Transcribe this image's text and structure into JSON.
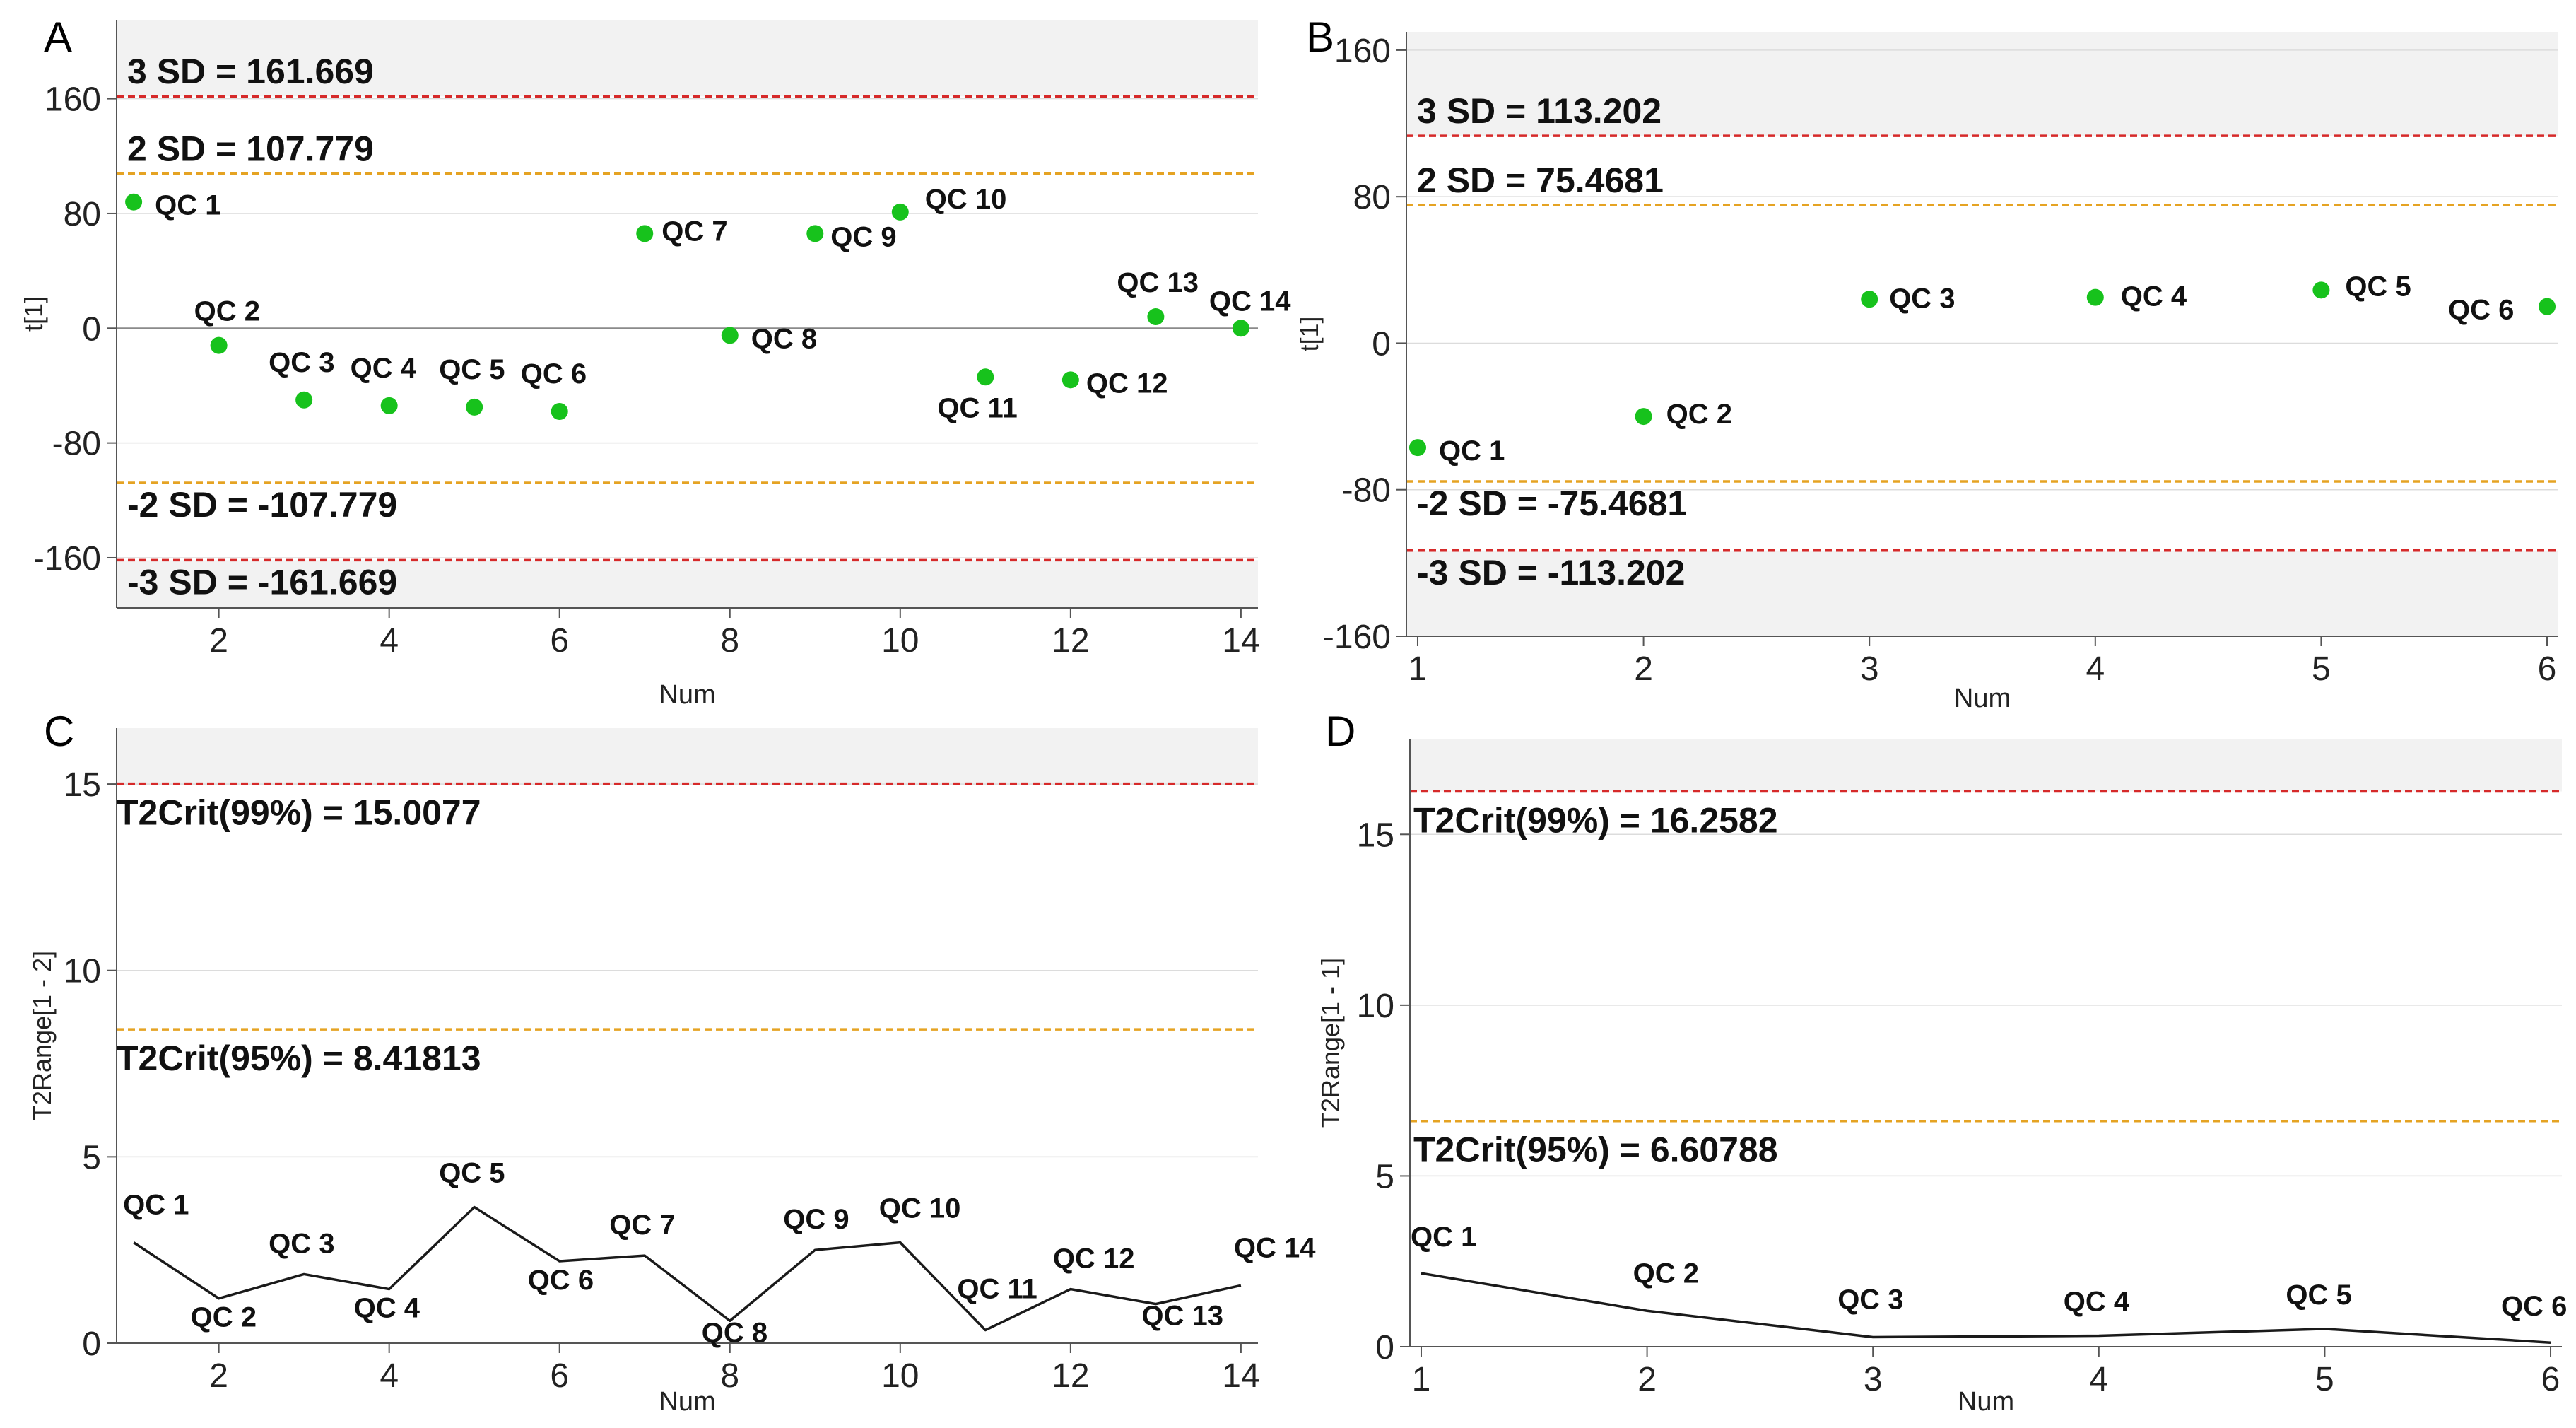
{
  "chart_data": [
    {
      "panel": "A",
      "type": "scatter",
      "xlabel": "Num",
      "ylabel": "t[1]",
      "xlim": [
        0.8,
        14.2
      ],
      "ylim": [
        -195,
        215
      ],
      "xticks": [
        2,
        4,
        6,
        8,
        10,
        12,
        14
      ],
      "yticks": [
        -160,
        -80,
        0,
        80,
        160
      ],
      "bands": [
        [
          161.669,
          215
        ],
        [
          -195,
          -161.669
        ]
      ],
      "ref_lines": [
        {
          "label": "3 SD = 161.669",
          "value": 161.669,
          "color": "#d62a2a"
        },
        {
          "label": "2 SD = 107.779",
          "value": 107.779,
          "color": "#e5a323"
        },
        {
          "label": "-2 SD = -107.779",
          "value": -107.779,
          "color": "#e5a323"
        },
        {
          "label": "-3 SD = -161.669",
          "value": -161.669,
          "color": "#d62a2a"
        }
      ],
      "zero_line": true,
      "points": [
        {
          "label": "QC 1",
          "x": 1,
          "y": 88
        },
        {
          "label": "QC 2",
          "x": 2,
          "y": -12
        },
        {
          "label": "QC 3",
          "x": 3,
          "y": -50
        },
        {
          "label": "QC 4",
          "x": 4,
          "y": -54
        },
        {
          "label": "QC 5",
          "x": 5,
          "y": -55
        },
        {
          "label": "QC 6",
          "x": 6,
          "y": -58
        },
        {
          "label": "QC 7",
          "x": 7,
          "y": 66
        },
        {
          "label": "QC 8",
          "x": 8,
          "y": -5
        },
        {
          "label": "QC 9",
          "x": 9,
          "y": 66
        },
        {
          "label": "QC 10",
          "x": 10,
          "y": 81
        },
        {
          "label": "QC 11",
          "x": 11,
          "y": -34
        },
        {
          "label": "QC 12",
          "x": 12,
          "y": -36
        },
        {
          "label": "QC 13",
          "x": 13,
          "y": 8
        },
        {
          "label": "QC 14",
          "x": 14,
          "y": 0
        }
      ]
    },
    {
      "panel": "B",
      "type": "scatter",
      "xlabel": "Num",
      "ylabel": "t[1]",
      "xlim": [
        0.95,
        6.05
      ],
      "ylim": [
        -160,
        170
      ],
      "xticks": [
        1,
        2,
        3,
        4,
        5,
        6
      ],
      "yticks": [
        -160,
        -80,
        0,
        80,
        160
      ],
      "bands": [
        [
          113.202,
          170
        ],
        [
          -160,
          -113.202
        ]
      ],
      "ref_lines": [
        {
          "label": "3 SD = 113.202",
          "value": 113.202,
          "color": "#d62a2a"
        },
        {
          "label": "2 SD = 75.4681",
          "value": 75.4681,
          "color": "#e5a323"
        },
        {
          "label": "-2 SD = -75.4681",
          "value": -75.4681,
          "color": "#e5a323"
        },
        {
          "label": "-3 SD = -113.202",
          "value": -113.202,
          "color": "#d62a2a"
        }
      ],
      "zero_line": false,
      "points": [
        {
          "label": "QC 1",
          "x": 1,
          "y": -57
        },
        {
          "label": "QC 2",
          "x": 2,
          "y": -40
        },
        {
          "label": "QC 3",
          "x": 3,
          "y": 24
        },
        {
          "label": "QC 4",
          "x": 4,
          "y": 25
        },
        {
          "label": "QC 5",
          "x": 5,
          "y": 29
        },
        {
          "label": "QC 6",
          "x": 6,
          "y": 20
        }
      ]
    },
    {
      "panel": "C",
      "type": "line",
      "xlabel": "Num",
      "ylabel": "T2Range[1 - 2]",
      "xlim": [
        0.8,
        14.2
      ],
      "ylim": [
        0,
        16.5
      ],
      "xticks": [
        2,
        4,
        6,
        8,
        10,
        12,
        14
      ],
      "yticks": [
        0,
        5,
        10,
        15
      ],
      "bands": [
        [
          15.0077,
          16.5
        ]
      ],
      "ref_lines": [
        {
          "label": "T2Crit(99%) = 15.0077",
          "value": 15.0077,
          "color": "#d62a2a"
        },
        {
          "label": "T2Crit(95%) = 8.41813",
          "value": 8.41813,
          "color": "#e5a323"
        }
      ],
      "zero_line": false,
      "points": [
        {
          "label": "QC 1",
          "x": 1,
          "y": 2.7
        },
        {
          "label": "QC 2",
          "x": 2,
          "y": 1.2
        },
        {
          "label": "QC 3",
          "x": 3,
          "y": 1.85
        },
        {
          "label": "QC 4",
          "x": 4,
          "y": 1.45
        },
        {
          "label": "QC 5",
          "x": 5,
          "y": 3.65
        },
        {
          "label": "QC 6",
          "x": 6,
          "y": 2.2
        },
        {
          "label": "QC 7",
          "x": 7,
          "y": 2.35
        },
        {
          "label": "QC 8",
          "x": 8,
          "y": 0.6
        },
        {
          "label": "QC 9",
          "x": 9,
          "y": 2.5
        },
        {
          "label": "QC 10",
          "x": 10,
          "y": 2.7
        },
        {
          "label": "QC 11",
          "x": 11,
          "y": 0.35
        },
        {
          "label": "QC 12",
          "x": 12,
          "y": 1.45
        },
        {
          "label": "QC 13",
          "x": 13,
          "y": 1.05
        },
        {
          "label": "QC 14",
          "x": 14,
          "y": 1.55
        }
      ]
    },
    {
      "panel": "D",
      "type": "line",
      "xlabel": "Num",
      "ylabel": "T2Range[1 - 1]",
      "xlim": [
        0.95,
        6.05
      ],
      "ylim": [
        0,
        17.8
      ],
      "xticks": [
        1,
        2,
        3,
        4,
        5,
        6
      ],
      "yticks": [
        0,
        5,
        10,
        15
      ],
      "bands": [
        [
          16.2582,
          17.8
        ]
      ],
      "ref_lines": [
        {
          "label": "T2Crit(99%) = 16.2582",
          "value": 16.2582,
          "color": "#d62a2a"
        },
        {
          "label": "T2Crit(95%) = 6.60788",
          "value": 6.60788,
          "color": "#e5a323"
        }
      ],
      "zero_line": false,
      "points": [
        {
          "label": "QC 1",
          "x": 1,
          "y": 2.15
        },
        {
          "label": "QC 2",
          "x": 2,
          "y": 1.05
        },
        {
          "label": "QC 3",
          "x": 3,
          "y": 0.28
        },
        {
          "label": "QC 4",
          "x": 4,
          "y": 0.32
        },
        {
          "label": "QC 5",
          "x": 5,
          "y": 0.52
        },
        {
          "label": "QC 6",
          "x": 6,
          "y": 0.12
        }
      ]
    }
  ],
  "colors": {
    "point": "#17c21c",
    "line": "#1a1a1a",
    "band": "#f2f2f2",
    "grid": "#dcdcdc",
    "axis": "#555555"
  }
}
